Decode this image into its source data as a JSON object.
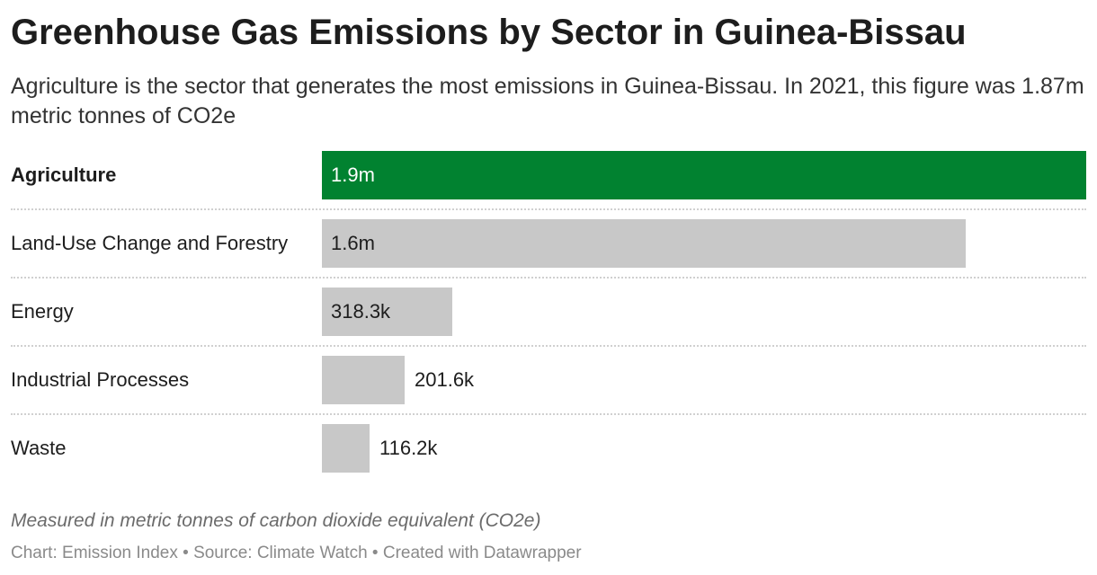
{
  "title": "Greenhouse Gas Emissions by Sector in Guinea-Bissau",
  "subtitle": "Agriculture is the sector that generates the most emissions in Guinea-Bissau. In 2021, this figure was 1.87m metric tonnes of CO2e",
  "note": "Measured in metric tonnes of carbon dioxide equivalent (CO2e)",
  "credits": "Chart: Emission Index • Source: Climate Watch • Created with Datawrapper",
  "colors": {
    "highlight": "#018230",
    "default": "#c8c8c8"
  },
  "chart_data": {
    "type": "bar",
    "orientation": "horizontal",
    "categories": [
      "Agriculture",
      "Land-Use Change and Forestry",
      "Energy",
      "Industrial Processes",
      "Waste"
    ],
    "values": [
      1870000,
      1575000,
      318300,
      201600,
      116200
    ],
    "value_labels": [
      "1.9m",
      "1.6m",
      "318.3k",
      "201.6k",
      "116.2k"
    ],
    "highlighted": [
      "Agriculture"
    ],
    "xlim": [
      0,
      1870000
    ],
    "grid": false
  }
}
